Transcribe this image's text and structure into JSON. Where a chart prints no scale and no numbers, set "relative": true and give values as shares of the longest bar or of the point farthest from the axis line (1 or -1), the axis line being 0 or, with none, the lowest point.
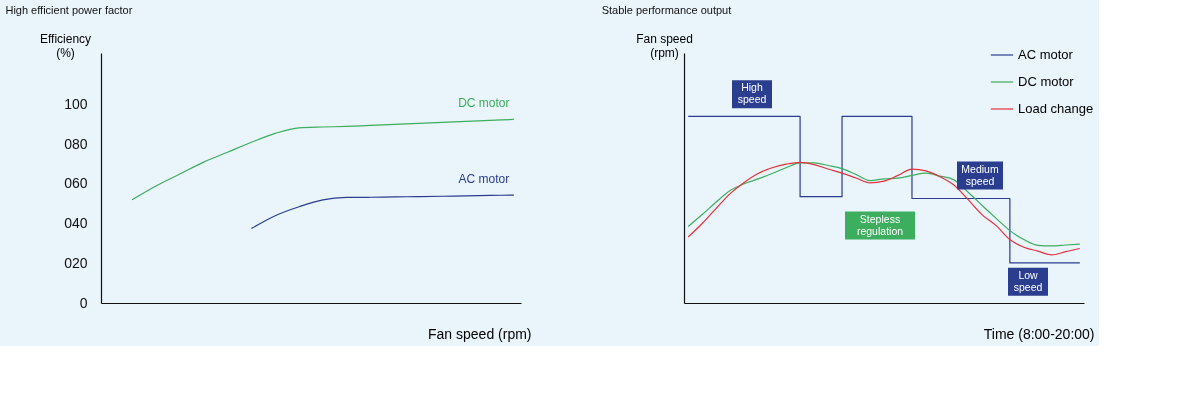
{
  "chart_data": [
    {
      "type": "line",
      "title": "High efficient power factor",
      "xlabel": "Fan speed (rpm)",
      "ylabel": "Efficiency (%)",
      "categories": [
        null,
        null,
        null,
        null,
        null,
        null,
        null,
        null,
        null,
        null,
        null,
        null,
        null,
        null,
        null,
        null,
        null,
        null
      ],
      "series": [
        {
          "name": "AC motor",
          "color": "#2b3d8f",
          "values": [
            null,
            null,
            null,
            null,
            null,
            null,
            37.5,
            44,
            48.5,
            52,
            53.2,
            53.3,
            53.5,
            53.6,
            53.8,
            54,
            54.2,
            54.4
          ]
        },
        {
          "name": "DC motor",
          "color": "#3cae5e",
          "values": [
            null,
            52,
            59,
            65,
            71,
            76,
            81,
            85.5,
            88.3,
            88.7,
            89,
            89.5,
            90,
            90.5,
            91,
            91.5,
            92,
            92.5
          ]
        }
      ],
      "ylim": [
        0,
        126
      ],
      "yticks": [
        0,
        {
          "value": 20,
          "label": "020"
        },
        {
          "value": 40,
          "label": "040"
        },
        {
          "value": 60,
          "label": "060"
        },
        {
          "value": 80,
          "label": "080"
        },
        100
      ],
      "grid": false,
      "legend": false,
      "tick_labels": "y"
    },
    {
      "type": "line",
      "title": "Stable performance output",
      "xlabel": "Time (8:00-20:00)",
      "ylabel": "Fan speed (rpm)",
      "categories": [
        null,
        null,
        null,
        null,
        null,
        null,
        null,
        null,
        null,
        null,
        null,
        null,
        null,
        null,
        null,
        null,
        null,
        null,
        null,
        null,
        null,
        null,
        null,
        null,
        null,
        null,
        null,
        null,
        null
      ],
      "series": [
        {
          "name": "AC motor",
          "type": "step",
          "color": "#2b3d8f",
          "values": [
            1,
            1,
            1,
            1,
            1,
            1,
            1,
            1,
            0.57,
            0.57,
            0.57,
            1,
            1,
            1,
            1,
            1,
            0.56,
            0.56,
            0.56,
            0.56,
            0.56,
            0.56,
            0.56,
            0.215,
            0.215,
            0.215,
            0.215,
            0.215,
            0.215
          ]
        },
        {
          "name": "DC motor",
          "color": "#3cae5e",
          "values": [
            0.41,
            0.474,
            0.541,
            0.603,
            0.639,
            0.665,
            0.694,
            0.725,
            0.751,
            0.751,
            0.737,
            0.72,
            0.689,
            0.656,
            0.665,
            0.669,
            0.684,
            0.696,
            0.68,
            0.66,
            0.595,
            0.524,
            0.455,
            0.388,
            0.34,
            0.309,
            0.306,
            0.311,
            0.316
          ]
        },
        {
          "name": "Load change",
          "color": "#e5323b",
          "values": [
            0.354,
            0.426,
            0.507,
            0.586,
            0.646,
            0.694,
            0.725,
            0.744,
            0.754,
            0.742,
            0.718,
            0.696,
            0.67,
            0.644,
            0.653,
            0.684,
            0.718,
            0.708,
            0.677,
            0.632,
            0.555,
            0.474,
            0.416,
            0.34,
            0.299,
            0.278,
            0.258,
            0.275,
            0.292
          ]
        }
      ],
      "relative": true,
      "grid": false,
      "legend": "top right",
      "tick_labels": false,
      "annotations": [
        "High speed",
        "Stepless regulation",
        "Medium speed",
        "Low speed"
      ]
    }
  ]
}
